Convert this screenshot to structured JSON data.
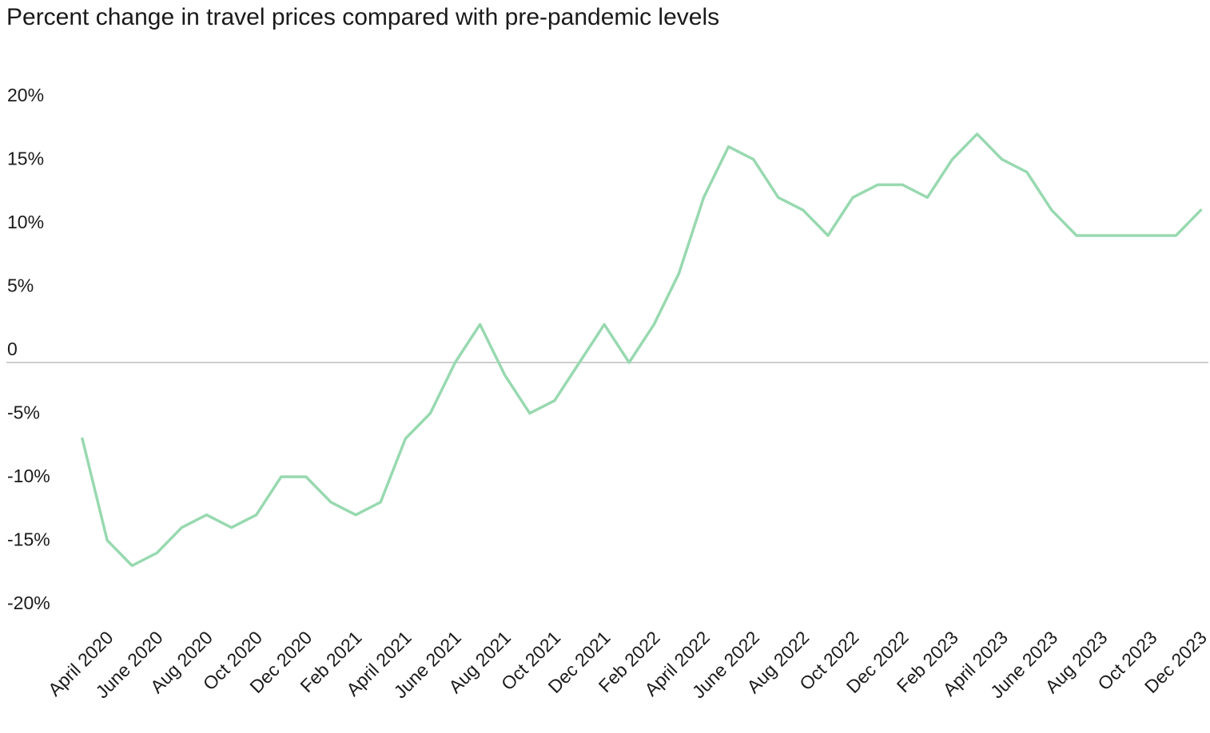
{
  "chart_data": {
    "type": "line",
    "title": "Percent change in travel prices compared with pre-pandemic levels",
    "xlabel": "",
    "ylabel": "",
    "ylim": [
      -20,
      20
    ],
    "y_ticks": [
      {
        "value": 20,
        "label": "20%"
      },
      {
        "value": 15,
        "label": "15%"
      },
      {
        "value": 10,
        "label": "10%"
      },
      {
        "value": 5,
        "label": "5%"
      },
      {
        "value": 0,
        "label": "0"
      },
      {
        "value": -5,
        "label": "-5%"
      },
      {
        "value": -10,
        "label": "-10%"
      },
      {
        "value": -15,
        "label": "-15%"
      },
      {
        "value": -20,
        "label": "-20%"
      }
    ],
    "x_tick_labels": [
      "April 2020",
      "June 2020",
      "Aug 2020",
      "Oct 2020",
      "Dec 2020",
      "Feb 2021",
      "April 2021",
      "June 2021",
      "Aug 2021",
      "Oct 2021",
      "Dec 2021",
      "Feb 2022",
      "April 2022",
      "June 2022",
      "Aug 2022",
      "Oct 2022",
      "Dec 2022",
      "Feb 2023",
      "April 2023",
      "June 2023",
      "Aug 2023",
      "Oct 2023",
      "Dec 2023"
    ],
    "zero_line": true,
    "grid": false,
    "line_color": "#98d9b0",
    "zero_line_color": "#bdbdbd",
    "series": [
      {
        "x": [
          "Apr 2020",
          "May 2020",
          "Jun 2020",
          "Jul 2020",
          "Aug 2020",
          "Sep 2020",
          "Oct 2020",
          "Nov 2020",
          "Dec 2020",
          "Jan 2021",
          "Feb 2021",
          "Mar 2021",
          "Apr 2021",
          "May 2021",
          "Jun 2021",
          "Jul 2021",
          "Aug 2021",
          "Sep 2021",
          "Oct 2021",
          "Nov 2021",
          "Dec 2021",
          "Jan 2022",
          "Feb 2022",
          "Mar 2022",
          "Apr 2022",
          "May 2022",
          "Jun 2022",
          "Jul 2022",
          "Aug 2022",
          "Sep 2022",
          "Oct 2022",
          "Nov 2022",
          "Dec 2022",
          "Jan 2023",
          "Feb 2023",
          "Mar 2023",
          "Apr 2023",
          "May 2023",
          "Jun 2023",
          "Jul 2023",
          "Aug 2023",
          "Sep 2023",
          "Oct 2023",
          "Nov 2023",
          "Dec 2023",
          "Jan 2024"
        ],
        "values": [
          -6,
          -14,
          -16,
          -15,
          -13,
          -12,
          -13,
          -12,
          -9,
          -9,
          -11,
          -12,
          -11,
          -6,
          -4,
          0,
          3,
          -1,
          -4,
          -3,
          0,
          3,
          0,
          3,
          7,
          13,
          17,
          16,
          13,
          12,
          10,
          13,
          14,
          14,
          13,
          16,
          18,
          16,
          15,
          12,
          10,
          10,
          10,
          10,
          10,
          12
        ]
      }
    ]
  }
}
